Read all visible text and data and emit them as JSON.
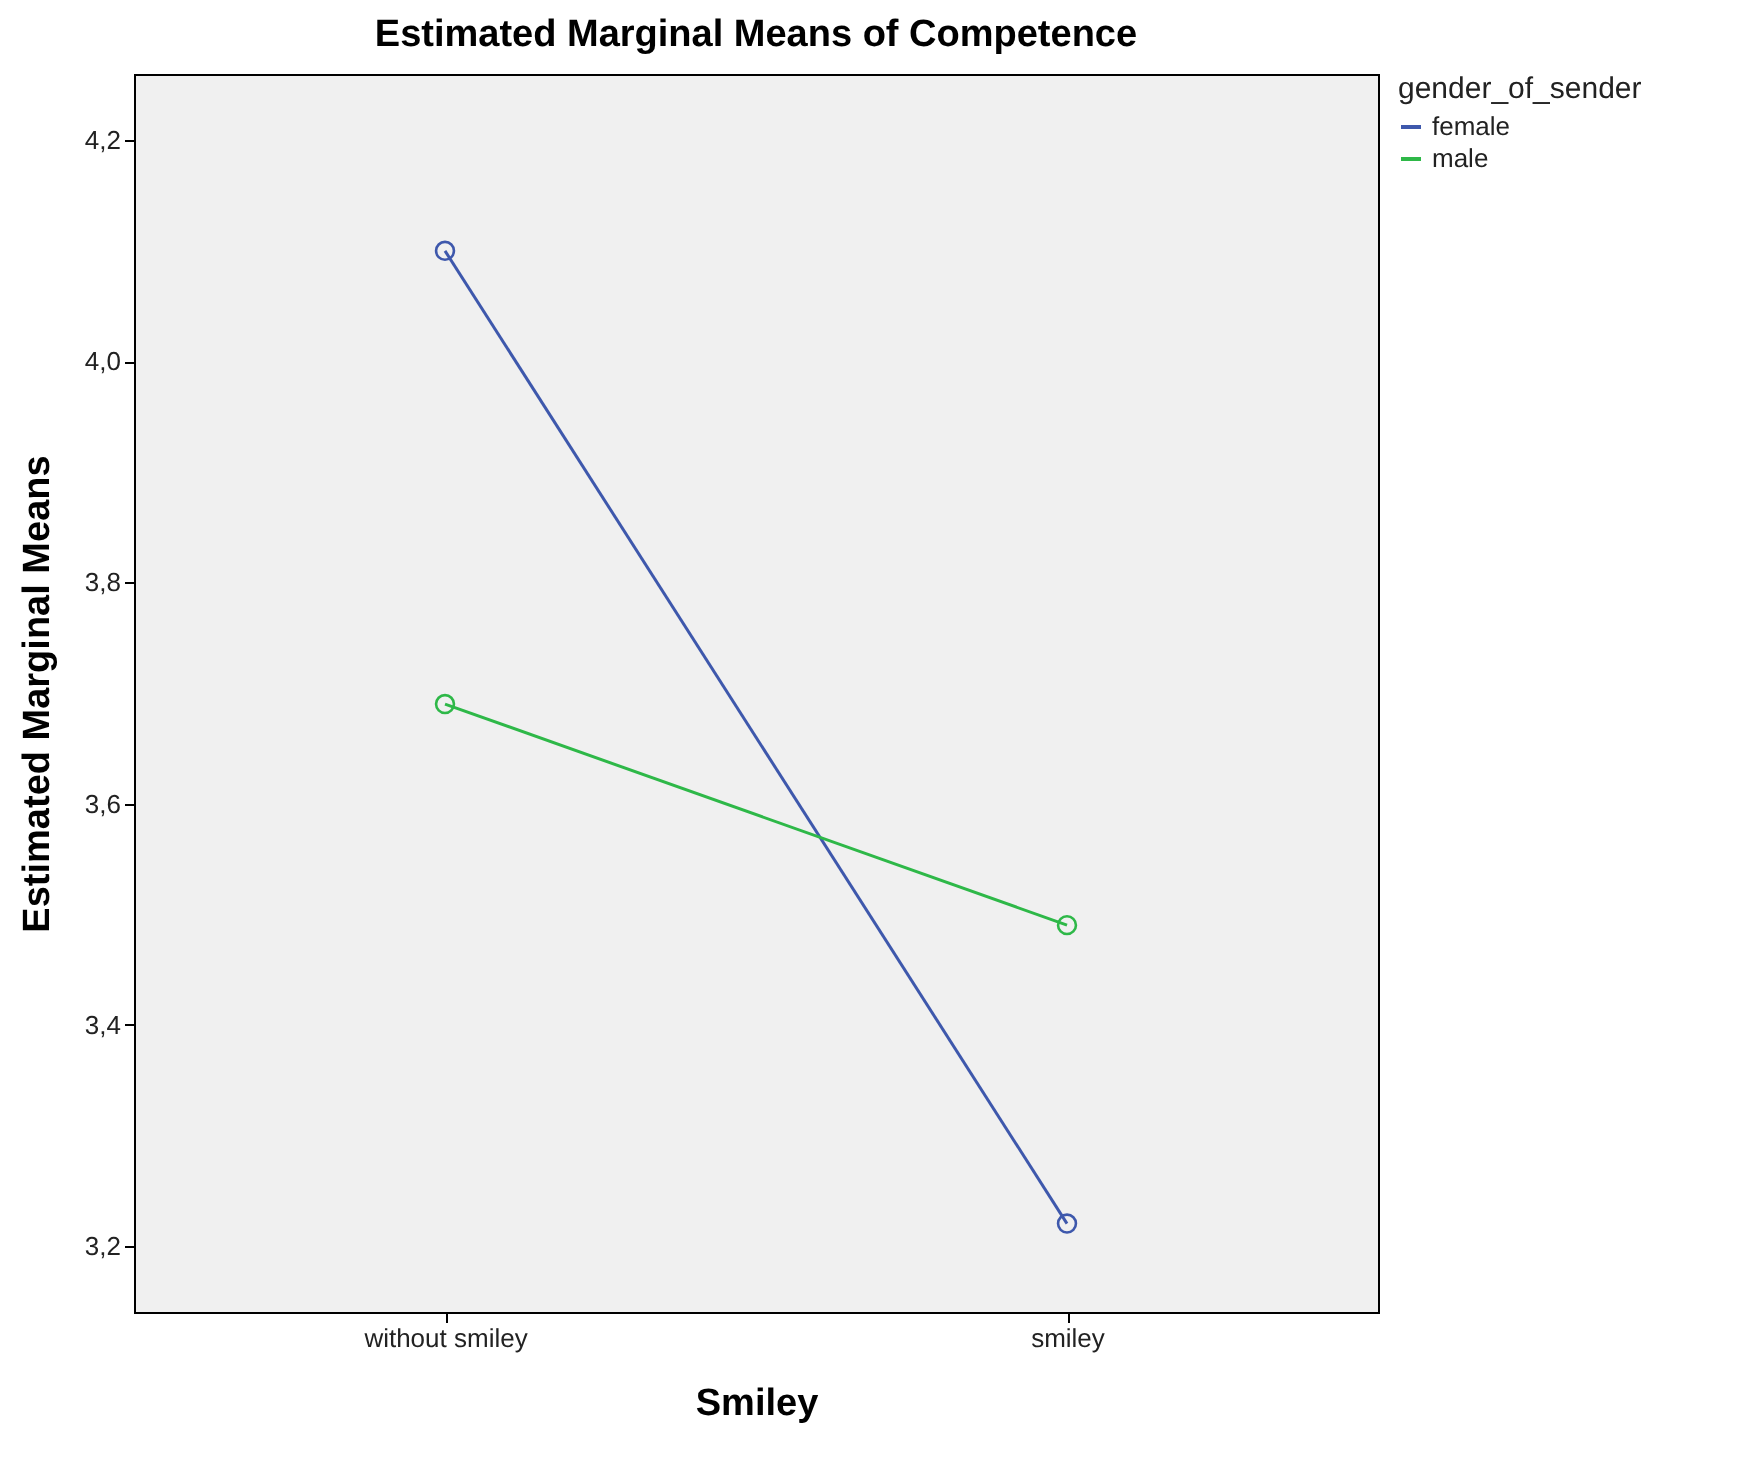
{
  "chart_data": {
    "type": "line",
    "title": "Estimated Marginal Means of Competence",
    "xlabel": "Smiley",
    "ylabel": "Estimated Marginal Means",
    "legend_title": "gender_of_sender",
    "categories": [
      "without smiley",
      "smiley"
    ],
    "series": [
      {
        "name": "female",
        "color": "#3e58ac",
        "values": [
          4.1,
          3.22
        ]
      },
      {
        "name": "male",
        "color": "#2eb848",
        "values": [
          3.69,
          3.49
        ]
      }
    ],
    "ylim": [
      3.14,
      4.26
    ],
    "yticks": [
      {
        "value": 3.2,
        "label": "3,2"
      },
      {
        "value": 3.4,
        "label": "3,4"
      },
      {
        "value": 3.6,
        "label": "3,6"
      },
      {
        "value": 3.8,
        "label": "3,8"
      },
      {
        "value": 4.0,
        "label": "4,0"
      },
      {
        "value": 4.2,
        "label": "4,2"
      }
    ],
    "grid": false,
    "legend": "top right",
    "marker": "circle"
  }
}
